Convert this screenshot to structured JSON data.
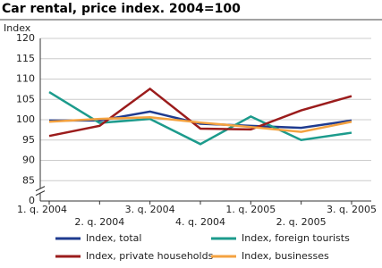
{
  "chart_data": {
    "type": "line",
    "title": "Car rental, price index. 2004=100",
    "y_label": "Index",
    "categories": [
      "1. q. 2004",
      "2. q. 2004",
      "3. q. 2004",
      "4. q. 2004",
      "1. q. 2005",
      "2. q. 2005",
      "3. q. 2005"
    ],
    "series": [
      {
        "name": "Index, total",
        "color": "#1f3b8f",
        "values": [
          99.8,
          99.8,
          102,
          99,
          98.5,
          98,
          99.8
        ]
      },
      {
        "name": "Index, foreign tourists",
        "color": "#1c9b8c",
        "values": [
          106.8,
          99.2,
          100.2,
          94,
          100.8,
          95,
          96.8
        ]
      },
      {
        "name": "Index, private households",
        "color": "#9b1c1c",
        "values": [
          96,
          98.5,
          107.6,
          97.8,
          97.6,
          102.3,
          105.8
        ]
      },
      {
        "name": "Index, businesses",
        "color": "#f4a240",
        "values": [
          99.5,
          100.2,
          100.6,
          99.3,
          98.2,
          97,
          99.5
        ]
      }
    ],
    "ylim": [
      0,
      120
    ],
    "axis_break": [
      0,
      85
    ],
    "yticks": [
      0,
      85,
      90,
      95,
      100,
      105,
      110,
      115,
      120
    ],
    "grid": true
  }
}
